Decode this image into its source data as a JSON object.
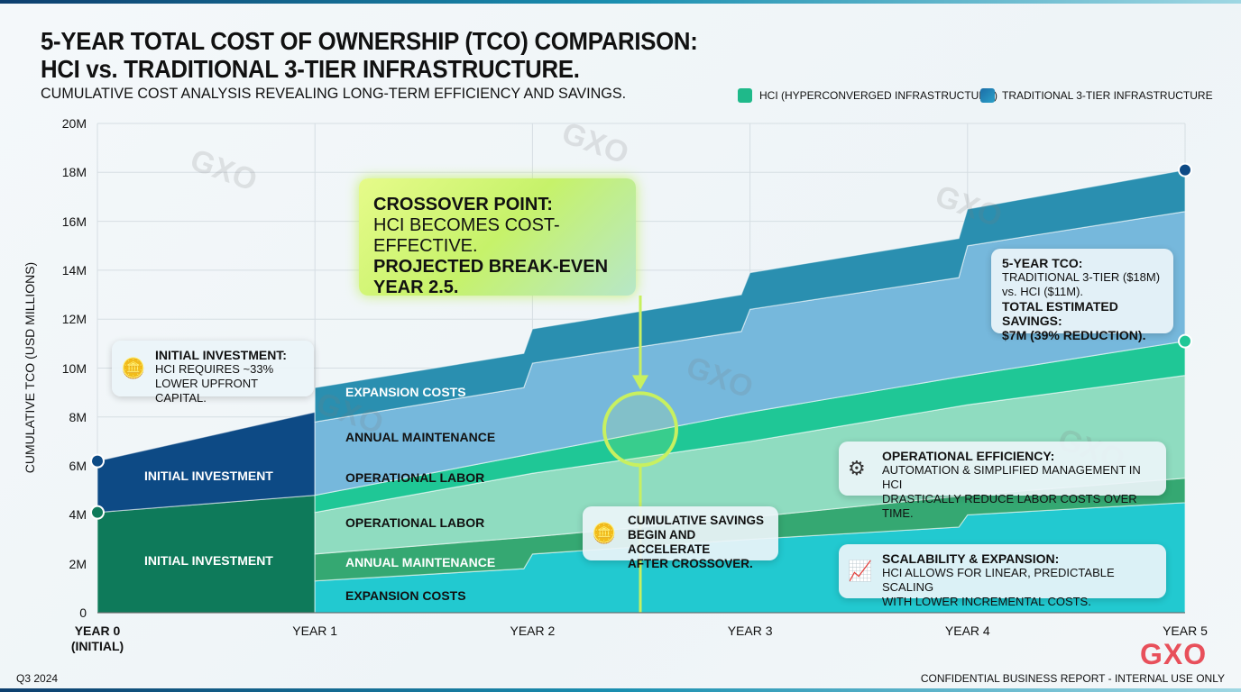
{
  "title_line1": "5-YEAR TOTAL COST OF OWNERSHIP (TCO) COMPARISON:",
  "title_line2": "HCI vs. TRADITIONAL 3-TIER INFRASTRUCTURE.",
  "subtitle": "CUMULATIVE COST ANALYSIS REVEALING LONG-TERM EFFICIENCY AND SAVINGS.",
  "colors": {
    "hci": "#1fb98a",
    "traditional": "#1f7fae",
    "hci_initial": "#0e7a5a",
    "trad_initial": "#0d4a85",
    "hci_expansion": "#22c9d0",
    "hci_maintenance": "#35a872",
    "hci_labor_light": "#8fdcc0",
    "hci_labor": "#1fc796",
    "trad_maintenance": "#76b8dc",
    "trad_expansion": "#2a8fb0",
    "crossover": "#c8f060",
    "logo": "#e8505b"
  },
  "chart_data": {
    "type": "area",
    "stacked": true,
    "ylabel": "CUMULATIVE TCO (USD MILLIONS)",
    "ylim": [
      0,
      20
    ],
    "yticks": [
      "0",
      "2M",
      "4M",
      "6M",
      "8M",
      "10M",
      "12M",
      "14M",
      "16M",
      "18M",
      "20M"
    ],
    "xticks": [
      "YEAR 0 (INITIAL)",
      "YEAR 1",
      "YEAR 2",
      "YEAR 3",
      "YEAR 4",
      "YEAR 5"
    ],
    "grid": true,
    "legend": {
      "position": "top-right",
      "items": [
        "HCI (HYPERCONVERGED INFRASTRUCTURE)",
        "TRADITIONAL 3-TIER INFRASTRUCTURE"
      ]
    },
    "bands": [
      {
        "label": "INITIAL INVESTMENT",
        "group": "hci",
        "color": "hci_initial",
        "upper": [
          [
            0,
            4.1
          ],
          [
            1,
            4.8
          ]
        ],
        "lower": [
          [
            0,
            0
          ],
          [
            1,
            0
          ]
        ]
      },
      {
        "label": "INITIAL INVESTMENT",
        "group": "traditional",
        "color": "trad_initial",
        "upper": [
          [
            0,
            6.2
          ],
          [
            1,
            8.2
          ]
        ],
        "lower": [
          [
            0,
            4.1
          ],
          [
            1,
            4.8
          ]
        ]
      },
      {
        "label": "EXPANSION COSTS",
        "group": "hci",
        "color": "hci_expansion",
        "upper": [
          [
            1,
            1.3
          ],
          [
            1.96,
            1.8
          ],
          [
            2,
            2.4
          ],
          [
            3,
            3.0
          ],
          [
            3.96,
            3.5
          ],
          [
            4,
            4.0
          ],
          [
            5,
            4.5
          ]
        ],
        "lower": [
          [
            1,
            0
          ],
          [
            5,
            0
          ]
        ]
      },
      {
        "label": "ANNUAL MAINTENANCE",
        "group": "hci",
        "color": "hci_maintenance",
        "upper": [
          [
            1,
            2.4
          ],
          [
            2,
            3.1
          ],
          [
            3,
            3.9
          ],
          [
            4,
            4.8
          ],
          [
            5,
            5.5
          ]
        ],
        "lower": [
          [
            1,
            1.3
          ],
          [
            1.96,
            1.8
          ],
          [
            2,
            2.4
          ],
          [
            3,
            3.0
          ],
          [
            3.96,
            3.5
          ],
          [
            4,
            4.0
          ],
          [
            5,
            4.5
          ]
        ]
      },
      {
        "label": "OPERATIONAL LABOR",
        "group": "hci",
        "color": "hci_labor_light",
        "upper": [
          [
            1,
            4.1
          ],
          [
            2,
            5.7
          ],
          [
            3,
            7.0
          ],
          [
            4,
            8.5
          ],
          [
            5,
            9.7
          ]
        ],
        "lower": [
          [
            1,
            2.4
          ],
          [
            2,
            3.1
          ],
          [
            3,
            3.9
          ],
          [
            4,
            4.8
          ],
          [
            5,
            5.5
          ]
        ]
      },
      {
        "label": "OPERATIONAL LABOR",
        "group": "hci",
        "color": "hci_labor",
        "upper": [
          [
            1,
            4.8
          ],
          [
            2,
            6.5
          ],
          [
            3,
            8.2
          ],
          [
            4,
            9.7
          ],
          [
            5,
            11.1
          ]
        ],
        "lower": [
          [
            1,
            4.1
          ],
          [
            2,
            5.7
          ],
          [
            3,
            7.0
          ],
          [
            4,
            8.5
          ],
          [
            5,
            9.7
          ]
        ]
      },
      {
        "label": "ANNUAL MAINTENANCE",
        "group": "traditional",
        "color": "trad_maintenance",
        "upper": [
          [
            1,
            7.8
          ],
          [
            1.96,
            9.2
          ],
          [
            2,
            10.2
          ],
          [
            2.96,
            11.5
          ],
          [
            3,
            12.4
          ],
          [
            3.96,
            13.7
          ],
          [
            4,
            15.0
          ],
          [
            5,
            16.4
          ]
        ],
        "lower": [
          [
            1,
            4.8
          ],
          [
            2,
            6.5
          ],
          [
            3,
            8.2
          ],
          [
            4,
            9.7
          ],
          [
            5,
            11.1
          ]
        ]
      },
      {
        "label": "EXPANSION COSTS",
        "group": "traditional",
        "color": "trad_expansion",
        "upper": [
          [
            1,
            9.2
          ],
          [
            1.96,
            10.6
          ],
          [
            2,
            11.6
          ],
          [
            2.96,
            13.0
          ],
          [
            3,
            13.9
          ],
          [
            3.96,
            15.3
          ],
          [
            4,
            16.5
          ],
          [
            5,
            18.1
          ]
        ],
        "lower": [
          [
            1,
            7.8
          ],
          [
            1.96,
            9.2
          ],
          [
            2,
            10.2
          ],
          [
            2.96,
            11.5
          ],
          [
            3,
            12.4
          ],
          [
            3.96,
            13.7
          ],
          [
            4,
            15.0
          ],
          [
            5,
            16.4
          ]
        ]
      }
    ],
    "markers": [
      {
        "series": "traditional",
        "x": 0,
        "y": 6.2
      },
      {
        "series": "hci",
        "x": 0,
        "y": 4.1
      },
      {
        "series": "traditional",
        "x": 5,
        "y": 18.1
      },
      {
        "series": "hci",
        "x": 5,
        "y": 11.1
      }
    ],
    "crossover": {
      "x": 2.5,
      "y": 7.5
    }
  },
  "annotations": {
    "initial": {
      "title": "INITIAL INVESTMENT:",
      "line1": "HCI REQUIRES ~33%",
      "line2": "LOWER UPFRONT CAPITAL.",
      "icon": "hand-coin-icon"
    },
    "crossover": {
      "title": "CROSSOVER POINT:",
      "line1": "HCI BECOMES COST-EFFECTIVE.",
      "line2": "PROJECTED BREAK-EVEN",
      "line3": "YEAR 2.5."
    },
    "savings": {
      "line1": "CUMULATIVE SAVINGS",
      "line2": "BEGIN AND ACCELERATE",
      "line3": "AFTER CROSSOVER.",
      "icon": "hand-coin-icon"
    },
    "tco": {
      "title": "5-YEAR TCO:",
      "line1": "TRADITIONAL 3-TIER ($18M)",
      "line2": "vs. HCI ($11M).",
      "line3": "TOTAL ESTIMATED SAVINGS:",
      "line4": "$7M (39% REDUCTION)."
    },
    "efficiency": {
      "title": "OPERATIONAL EFFICIENCY:",
      "line1": "AUTOMATION & SIMPLIFIED MANAGEMENT IN HCI",
      "line2": "DRASTICALLY REDUCE LABOR COSTS OVER TIME.",
      "icon": "gear-icon"
    },
    "scalability": {
      "title": "SCALABILITY & EXPANSION:",
      "line1": "HCI ALLOWS FOR LINEAR, PREDICTABLE SCALING",
      "line2": "WITH LOWER INCREMENTAL COSTS.",
      "icon": "growth-chart-icon"
    }
  },
  "watermark": "GXO",
  "footer": {
    "left": "Q3 2024",
    "right": "CONFIDENTIAL BUSINESS REPORT - INTERNAL USE ONLY",
    "logo": "GXO"
  }
}
